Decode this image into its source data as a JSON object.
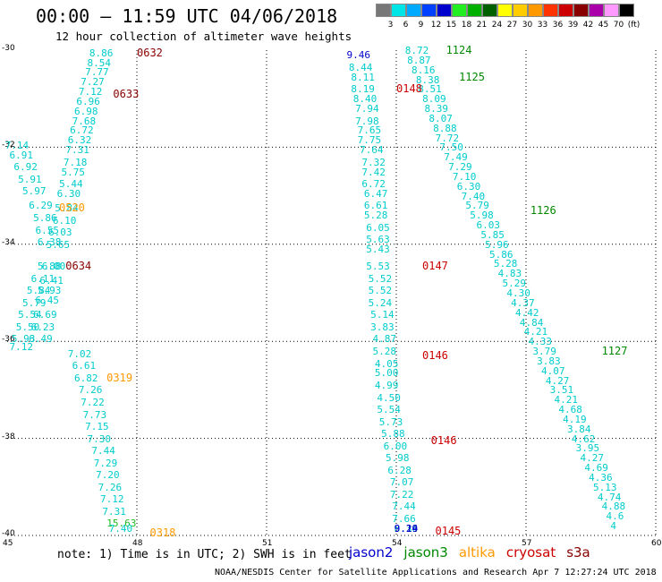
{
  "title": "00:00 – 11:59 UTC 04/06/2018",
  "subtitle": "12 hour collection of altimeter wave heights",
  "colorbar": {
    "swatches": [
      "#777777",
      "#00e5e5",
      "#00aaff",
      "#0040ff",
      "#0000cc",
      "#22ee22",
      "#00b000",
      "#006000",
      "#ffff00",
      "#ffcc00",
      "#ff9900",
      "#ff3300",
      "#cc0000",
      "#880000",
      "#aa00aa",
      "#ff99ff",
      "#000000"
    ],
    "labels": [
      "3",
      "6",
      "9",
      "12",
      "15",
      "18",
      "21",
      "24",
      "27",
      "30",
      "33",
      "36",
      "39",
      "42",
      "45",
      "70",
      "(ft)"
    ]
  },
  "axes": {
    "lon_labels": [
      "45",
      "48",
      "51",
      "54",
      "57",
      "60"
    ],
    "lat_labels": [
      "-30",
      "-32",
      "-34",
      "-36",
      "-38",
      "-40"
    ],
    "lon_range": [
      45,
      60
    ],
    "lat_range": [
      -30,
      -40
    ],
    "grid": true
  },
  "satellite_colors": {
    "jason2": "#0000cc",
    "jason3": "#008800",
    "altika": "#ff9900",
    "cryosat": "#cc0000",
    "s3a": "#880000"
  },
  "track_labels": [
    {
      "text": "0632",
      "lon": 48.0,
      "lat": -30.05,
      "sat": "s3a"
    },
    {
      "text": "0633",
      "lon": 47.45,
      "lat": -30.9,
      "sat": "s3a"
    },
    {
      "text": "0520",
      "lon": 46.2,
      "lat": -33.25,
      "sat": "altika"
    },
    {
      "text": "0634",
      "lon": 46.35,
      "lat": -34.45,
      "sat": "s3a"
    },
    {
      "text": "0319",
      "lon": 47.3,
      "lat": -36.75,
      "sat": "altika"
    },
    {
      "text": "0318",
      "lon": 48.3,
      "lat": -39.95,
      "sat": "altika"
    },
    {
      "text": "1124",
      "lon": 55.15,
      "lat": -30.0,
      "sat": "jason3"
    },
    {
      "text": "1125",
      "lon": 55.45,
      "lat": -30.55,
      "sat": "jason3"
    },
    {
      "text": "0148",
      "lon": 54.0,
      "lat": -30.8,
      "sat": "cryosat"
    },
    {
      "text": "1126",
      "lon": 57.1,
      "lat": -33.3,
      "sat": "jason3"
    },
    {
      "text": "0147",
      "lon": 54.6,
      "lat": -34.45,
      "sat": "cryosat"
    },
    {
      "text": "1127",
      "lon": 58.75,
      "lat": -36.2,
      "sat": "jason3"
    },
    {
      "text": "0146",
      "lon": 54.6,
      "lat": -36.3,
      "sat": "cryosat"
    },
    {
      "text": "0146",
      "lon": 54.8,
      "lat": -38.05,
      "sat": "cryosat"
    },
    {
      "text": "0145",
      "lon": 54.9,
      "lat": -39.9,
      "sat": "cryosat"
    }
  ],
  "chart_data": {
    "type": "scatter",
    "title": "00:00 – 11:59 UTC 04/06/2018",
    "subtitle": "12 hour collection of altimeter wave heights",
    "xlabel": "",
    "ylabel": "",
    "xlim": [
      45,
      60
    ],
    "ylim": [
      -40,
      -30
    ],
    "unit": "ft",
    "series": [
      {
        "name": "s3a 0632-0633",
        "color": "#00cccc",
        "points": [
          {
            "lon": 47.15,
            "lat": -30.05,
            "v": "8.86"
          },
          {
            "lon": 47.1,
            "lat": -30.25,
            "v": "8.54"
          },
          {
            "lon": 47.05,
            "lat": -30.45,
            "v": "7.77"
          },
          {
            "lon": 46.95,
            "lat": -30.65,
            "v": "7.27"
          },
          {
            "lon": 46.9,
            "lat": -30.85,
            "v": "7.12"
          },
          {
            "lon": 46.85,
            "lat": -31.05,
            "v": "6.96"
          },
          {
            "lon": 46.8,
            "lat": -31.25,
            "v": "6.98"
          },
          {
            "lon": 46.75,
            "lat": -31.45,
            "v": "7.68"
          },
          {
            "lon": 46.7,
            "lat": -31.65,
            "v": "6.72"
          },
          {
            "lon": 46.65,
            "lat": -31.85,
            "v": "6.32"
          },
          {
            "lon": 46.6,
            "lat": -32.05,
            "v": "7.31"
          },
          {
            "lon": 46.55,
            "lat": -32.3,
            "v": "7.18"
          },
          {
            "lon": 46.5,
            "lat": -32.5,
            "v": "5.75"
          },
          {
            "lon": 46.45,
            "lat": -32.75,
            "v": "5.44"
          },
          {
            "lon": 46.4,
            "lat": -32.95,
            "v": "6.30"
          },
          {
            "lon": 46.35,
            "lat": -33.25,
            "v": "5.84"
          },
          {
            "lon": 46.3,
            "lat": -33.5,
            "v": "6.10"
          },
          {
            "lon": 46.2,
            "lat": -33.75,
            "v": "6.03"
          },
          {
            "lon": 46.15,
            "lat": -34.0,
            "v": "5.65"
          },
          {
            "lon": 46.05,
            "lat": -34.45,
            "v": "6.00"
          },
          {
            "lon": 46.0,
            "lat": -34.75,
            "v": "6.41"
          },
          {
            "lon": 45.95,
            "lat": -34.95,
            "v": "5.93"
          },
          {
            "lon": 45.9,
            "lat": -35.15,
            "v": "6.45"
          },
          {
            "lon": 45.85,
            "lat": -35.45,
            "v": "6.69"
          },
          {
            "lon": 45.8,
            "lat": -35.7,
            "v": "6.23"
          },
          {
            "lon": 45.75,
            "lat": -35.95,
            "v": "6.49"
          }
        ]
      },
      {
        "name": "altika 0520",
        "color": "#00cccc",
        "points": [
          {
            "lon": 45.2,
            "lat": -31.95,
            "v": "7.14"
          },
          {
            "lon": 45.3,
            "lat": -32.15,
            "v": "6.91"
          },
          {
            "lon": 45.4,
            "lat": -32.4,
            "v": "6.92"
          },
          {
            "lon": 45.5,
            "lat": -32.65,
            "v": "5.91"
          },
          {
            "lon": 45.6,
            "lat": -32.9,
            "v": "5.97"
          },
          {
            "lon": 45.75,
            "lat": -33.2,
            "v": "6.29"
          },
          {
            "lon": 45.85,
            "lat": -33.45,
            "v": "5.86"
          },
          {
            "lon": 45.9,
            "lat": -33.7,
            "v": "6.55"
          },
          {
            "lon": 45.95,
            "lat": -33.95,
            "v": "6.38"
          },
          {
            "lon": 45.95,
            "lat": -34.45,
            "v": "5.88"
          },
          {
            "lon": 45.8,
            "lat": -34.7,
            "v": "6.11"
          },
          {
            "lon": 45.7,
            "lat": -34.95,
            "v": "5.84"
          },
          {
            "lon": 45.6,
            "lat": -35.2,
            "v": "5.79"
          },
          {
            "lon": 45.5,
            "lat": -35.45,
            "v": "5.54"
          },
          {
            "lon": 45.45,
            "lat": -35.7,
            "v": "5.50"
          },
          {
            "lon": 45.35,
            "lat": -35.95,
            "v": "5.93"
          },
          {
            "lon": 45.3,
            "lat": -36.1,
            "v": "7.12"
          }
        ]
      },
      {
        "name": "altika 0319-0318",
        "color": "#00cccc",
        "points": [
          {
            "lon": 46.65,
            "lat": -36.25,
            "v": "7.02"
          },
          {
            "lon": 46.75,
            "lat": -36.5,
            "v": "6.61"
          },
          {
            "lon": 46.8,
            "lat": -36.75,
            "v": "6.82"
          },
          {
            "lon": 46.9,
            "lat": -37.0,
            "v": "7.26"
          },
          {
            "lon": 46.95,
            "lat": -37.25,
            "v": "7.22"
          },
          {
            "lon": 47.0,
            "lat": -37.5,
            "v": "7.73"
          },
          {
            "lon": 47.05,
            "lat": -37.75,
            "v": "7.15"
          },
          {
            "lon": 47.1,
            "lat": -38.0,
            "v": "7.30"
          },
          {
            "lon": 47.2,
            "lat": -38.25,
            "v": "7.44"
          },
          {
            "lon": 47.25,
            "lat": -38.5,
            "v": "7.29"
          },
          {
            "lon": 47.3,
            "lat": -38.75,
            "v": "7.20"
          },
          {
            "lon": 47.35,
            "lat": -39.0,
            "v": "7.26"
          },
          {
            "lon": 47.4,
            "lat": -39.25,
            "v": "7.12"
          },
          {
            "lon": 47.45,
            "lat": -39.5,
            "v": "7.31"
          },
          {
            "lon": 47.55,
            "lat": -39.75,
            "v": "15.63",
            "color": "#22bb22"
          },
          {
            "lon": 47.6,
            "lat": -40.0,
            "v": "7.40"
          }
        ]
      },
      {
        "name": "jason2 0148",
        "color": "#0000cc",
        "points": [
          {
            "lon": 53.1,
            "lat": -30.1,
            "v": "9.46"
          }
        ]
      },
      {
        "name": "cryosat 0148-0145",
        "color": "#00cccc",
        "points": [
          {
            "lon": 53.15,
            "lat": -30.35,
            "v": "8.44"
          },
          {
            "lon": 53.2,
            "lat": -30.55,
            "v": "8.11"
          },
          {
            "lon": 53.2,
            "lat": -30.8,
            "v": "8.19"
          },
          {
            "lon": 53.25,
            "lat": -31.0,
            "v": "8.40"
          },
          {
            "lon": 53.3,
            "lat": -31.2,
            "v": "7.94"
          },
          {
            "lon": 53.3,
            "lat": -31.45,
            "v": "7.98"
          },
          {
            "lon": 53.35,
            "lat": -31.65,
            "v": "7.65"
          },
          {
            "lon": 53.35,
            "lat": -31.85,
            "v": "7.75"
          },
          {
            "lon": 53.4,
            "lat": -32.05,
            "v": "7.64"
          },
          {
            "lon": 53.45,
            "lat": -32.3,
            "v": "7.32"
          },
          {
            "lon": 53.45,
            "lat": -32.5,
            "v": "7.42"
          },
          {
            "lon": 53.45,
            "lat": -32.75,
            "v": "6.72"
          },
          {
            "lon": 53.5,
            "lat": -32.95,
            "v": "6.47"
          },
          {
            "lon": 53.5,
            "lat": -33.2,
            "v": "6.61"
          },
          {
            "lon": 53.5,
            "lat": -33.4,
            "v": "5.28"
          },
          {
            "lon": 53.55,
            "lat": -33.65,
            "v": "6.05"
          },
          {
            "lon": 53.55,
            "lat": -33.9,
            "v": "5.63"
          },
          {
            "lon": 53.55,
            "lat": -34.1,
            "v": "5.43"
          },
          {
            "lon": 53.55,
            "lat": -34.45,
            "v": "5.53"
          },
          {
            "lon": 53.6,
            "lat": -34.7,
            "v": "5.52"
          },
          {
            "lon": 53.6,
            "lat": -34.95,
            "v": "5.52"
          },
          {
            "lon": 53.6,
            "lat": -35.2,
            "v": "5.24"
          },
          {
            "lon": 53.65,
            "lat": -35.45,
            "v": "5.14"
          },
          {
            "lon": 53.65,
            "lat": -35.7,
            "v": "3.83"
          },
          {
            "lon": 53.7,
            "lat": -35.95,
            "v": "4.87"
          },
          {
            "lon": 53.7,
            "lat": -36.2,
            "v": "5.28"
          },
          {
            "lon": 53.75,
            "lat": -36.45,
            "v": "4.05"
          },
          {
            "lon": 53.75,
            "lat": -36.65,
            "v": "5.00"
          },
          {
            "lon": 53.75,
            "lat": -36.9,
            "v": "4.99"
          },
          {
            "lon": 53.8,
            "lat": -37.15,
            "v": "4.50"
          },
          {
            "lon": 53.8,
            "lat": -37.4,
            "v": "5.54"
          },
          {
            "lon": 53.85,
            "lat": -37.65,
            "v": "5.73"
          },
          {
            "lon": 53.9,
            "lat": -37.9,
            "v": "5.88"
          },
          {
            "lon": 53.95,
            "lat": -38.15,
            "v": "6.00"
          },
          {
            "lon": 54.0,
            "lat": -38.4,
            "v": "5.98"
          },
          {
            "lon": 54.05,
            "lat": -38.65,
            "v": "6.28"
          },
          {
            "lon": 54.1,
            "lat": -38.9,
            "v": "7.07"
          },
          {
            "lon": 54.1,
            "lat": -39.15,
            "v": "7.22"
          },
          {
            "lon": 54.15,
            "lat": -39.4,
            "v": "7.44"
          },
          {
            "lon": 54.15,
            "lat": -39.65,
            "v": "7.66"
          },
          {
            "lon": 54.2,
            "lat": -39.9,
            "v": "8.36"
          }
        ]
      },
      {
        "name": "jason2 0145",
        "color": "#0000cc",
        "points": [
          {
            "lon": 54.2,
            "lat": -40.1,
            "v": "9.14"
          },
          {
            "lon": 54.2,
            "lat": -40.3,
            "v": "9.29"
          }
        ]
      },
      {
        "name": "jason3 1124-1127",
        "color": "#00cccc",
        "points": [
          {
            "lon": 54.45,
            "lat": -30.0,
            "v": "8.72"
          },
          {
            "lon": 54.5,
            "lat": -30.2,
            "v": "8.87"
          },
          {
            "lon": 54.6,
            "lat": -30.4,
            "v": "8.16"
          },
          {
            "lon": 54.7,
            "lat": -30.6,
            "v": "8.38"
          },
          {
            "lon": 54.75,
            "lat": -30.8,
            "v": "8.51"
          },
          {
            "lon": 54.85,
            "lat": -31.0,
            "v": "8.09"
          },
          {
            "lon": 54.9,
            "lat": -31.2,
            "v": "8.39"
          },
          {
            "lon": 55.0,
            "lat": -31.4,
            "v": "8.07"
          },
          {
            "lon": 55.1,
            "lat": -31.6,
            "v": "8.88"
          },
          {
            "lon": 55.15,
            "lat": -31.8,
            "v": "7.72"
          },
          {
            "lon": 55.25,
            "lat": -32.0,
            "v": "7.50"
          },
          {
            "lon": 55.35,
            "lat": -32.2,
            "v": "7.49"
          },
          {
            "lon": 55.45,
            "lat": -32.4,
            "v": "7.29"
          },
          {
            "lon": 55.55,
            "lat": -32.6,
            "v": "7.10"
          },
          {
            "lon": 55.65,
            "lat": -32.8,
            "v": "6.30"
          },
          {
            "lon": 55.75,
            "lat": -33.0,
            "v": "7.40"
          },
          {
            "lon": 55.85,
            "lat": -33.2,
            "v": "5.79"
          },
          {
            "lon": 55.95,
            "lat": -33.4,
            "v": "5.98"
          },
          {
            "lon": 56.1,
            "lat": -33.6,
            "v": "6.03"
          },
          {
            "lon": 56.2,
            "lat": -33.8,
            "v": "5.85"
          },
          {
            "lon": 56.3,
            "lat": -34.0,
            "v": "5.96"
          },
          {
            "lon": 56.4,
            "lat": -34.2,
            "v": "5.86"
          },
          {
            "lon": 56.5,
            "lat": -34.4,
            "v": "5.28"
          },
          {
            "lon": 56.6,
            "lat": -34.6,
            "v": "4.83"
          },
          {
            "lon": 56.7,
            "lat": -34.8,
            "v": "5.29"
          },
          {
            "lon": 56.8,
            "lat": -35.0,
            "v": "4.30"
          },
          {
            "lon": 56.9,
            "lat": -35.2,
            "v": "4.37"
          },
          {
            "lon": 57.0,
            "lat": -35.4,
            "v": "4.42"
          },
          {
            "lon": 57.1,
            "lat": -35.6,
            "v": "4.84"
          },
          {
            "lon": 57.2,
            "lat": -35.8,
            "v": "4.21"
          },
          {
            "lon": 57.3,
            "lat": -36.0,
            "v": "4.33"
          },
          {
            "lon": 57.4,
            "lat": -36.2,
            "v": "3.79"
          },
          {
            "lon": 57.5,
            "lat": -36.4,
            "v": "3.83"
          },
          {
            "lon": 57.6,
            "lat": -36.6,
            "v": "4.07"
          },
          {
            "lon": 57.7,
            "lat": -36.8,
            "v": "4.27"
          },
          {
            "lon": 57.8,
            "lat": -37.0,
            "v": "3.51"
          },
          {
            "lon": 57.9,
            "lat": -37.2,
            "v": "4.21"
          },
          {
            "lon": 58.0,
            "lat": -37.4,
            "v": "4.68"
          },
          {
            "lon": 58.1,
            "lat": -37.6,
            "v": "4.19"
          },
          {
            "lon": 58.2,
            "lat": -37.8,
            "v": "3.84"
          },
          {
            "lon": 58.3,
            "lat": -38.0,
            "v": "4.62"
          },
          {
            "lon": 58.4,
            "lat": -38.2,
            "v": "3.95"
          },
          {
            "lon": 58.5,
            "lat": -38.4,
            "v": "4.27"
          },
          {
            "lon": 58.6,
            "lat": -38.6,
            "v": "4.69"
          },
          {
            "lon": 58.7,
            "lat": -38.8,
            "v": "4.36"
          },
          {
            "lon": 58.8,
            "lat": -39.0,
            "v": "5.13"
          },
          {
            "lon": 58.9,
            "lat": -39.2,
            "v": "4.74"
          },
          {
            "lon": 59.0,
            "lat": -39.4,
            "v": "4.88"
          },
          {
            "lon": 59.1,
            "lat": -39.6,
            "v": "4.6"
          },
          {
            "lon": 59.2,
            "lat": -39.8,
            "v": "4"
          }
        ]
      }
    ]
  },
  "note": "note: 1) Time is in UTC; 2) SWH is in feet",
  "legend": [
    {
      "label": "jason2",
      "color": "#0000cc"
    },
    {
      "label": "jason3",
      "color": "#008800"
    },
    {
      "label": "altika",
      "color": "#ff9900"
    },
    {
      "label": "cryosat",
      "color": "#cc0000"
    },
    {
      "label": "s3a",
      "color": "#880000"
    }
  ],
  "footer": "NOAA/NESDIS Center for Satellite Applications and Research    Apr  7 12:27:24 UTC 2018"
}
